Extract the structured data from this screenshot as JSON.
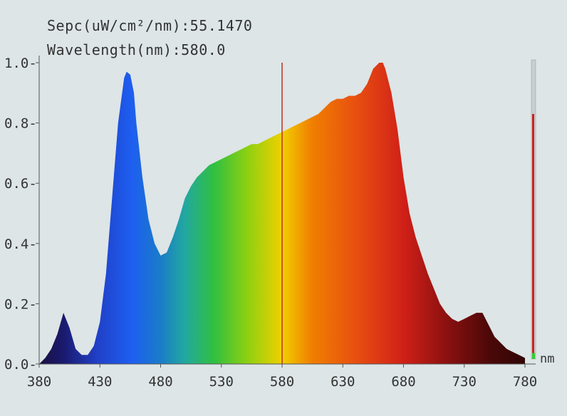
{
  "readout": {
    "spec_label": "Sepc(uW/cm²/nm):",
    "spec_value": "55.1470",
    "wavelength_label": "Wavelength(nm):",
    "wavelength_value": "580.0"
  },
  "unit_label": "nm",
  "level_meter": {
    "value_fraction": 0.02,
    "bar_color": "#cc2222",
    "indicator_color": "#33cc33"
  },
  "chart_data": {
    "type": "area",
    "title": "",
    "xlabel": "nm",
    "ylabel": "",
    "xlim": [
      380,
      780
    ],
    "ylim": [
      0,
      1.0
    ],
    "x_ticks": [
      "380",
      "430",
      "480",
      "530",
      "580",
      "630",
      "680",
      "730",
      "780"
    ],
    "y_ticks": [
      "0.0",
      "0.2",
      "0.4",
      "0.6",
      "0.8",
      "1.0"
    ],
    "cursor_wavelength": 580,
    "grid": false,
    "series": [
      {
        "x": [
          380,
          385,
          390,
          395,
          400,
          405,
          410,
          415,
          420,
          425,
          430,
          435,
          440,
          445,
          450,
          452,
          455,
          458,
          460,
          465,
          470,
          475,
          480,
          485,
          490,
          495,
          500,
          505,
          510,
          515,
          520,
          525,
          530,
          535,
          540,
          545,
          550,
          555,
          560,
          565,
          570,
          575,
          580,
          585,
          590,
          595,
          600,
          605,
          610,
          615,
          620,
          625,
          630,
          635,
          640,
          645,
          650,
          655,
          660,
          663,
          665,
          670,
          675,
          680,
          685,
          690,
          695,
          700,
          705,
          710,
          715,
          720,
          725,
          730,
          735,
          740,
          745,
          750,
          755,
          760,
          765,
          770,
          775,
          780
        ],
        "y": [
          0.0,
          0.02,
          0.05,
          0.1,
          0.17,
          0.12,
          0.05,
          0.03,
          0.03,
          0.06,
          0.14,
          0.3,
          0.55,
          0.8,
          0.95,
          0.97,
          0.96,
          0.9,
          0.8,
          0.62,
          0.48,
          0.4,
          0.36,
          0.37,
          0.42,
          0.48,
          0.55,
          0.59,
          0.62,
          0.64,
          0.66,
          0.67,
          0.68,
          0.69,
          0.7,
          0.71,
          0.72,
          0.73,
          0.73,
          0.74,
          0.75,
          0.76,
          0.77,
          0.78,
          0.79,
          0.8,
          0.81,
          0.82,
          0.83,
          0.85,
          0.87,
          0.88,
          0.88,
          0.89,
          0.89,
          0.9,
          0.93,
          0.98,
          1.0,
          1.0,
          0.98,
          0.9,
          0.78,
          0.62,
          0.5,
          0.42,
          0.36,
          0.3,
          0.25,
          0.2,
          0.17,
          0.15,
          0.14,
          0.15,
          0.16,
          0.17,
          0.17,
          0.13,
          0.09,
          0.07,
          0.05,
          0.04,
          0.03,
          0.02
        ]
      }
    ]
  }
}
